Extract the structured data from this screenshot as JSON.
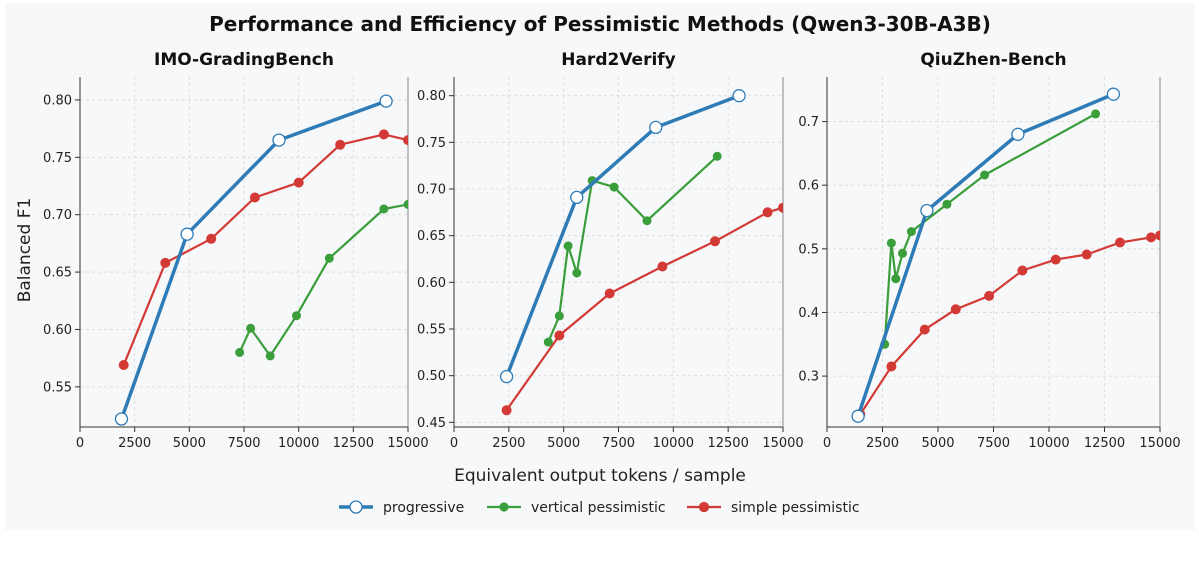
{
  "figure_title": "Performance and Efficiency of Pessimistic Methods (Qwen3-30B-A3B)",
  "xlabel": "Equivalent output tokens / sample",
  "ylabel": "Balanced F1",
  "legend": {
    "placement": "bottom-center",
    "entries": [
      "progressive",
      "vertical pessimistic",
      "simple pessimistic"
    ]
  },
  "colors": {
    "progressive": "#2f7bb6",
    "vertical pessimistic": "#3a9e3a",
    "simple pessimistic": "#d43a35"
  },
  "chart_data": [
    {
      "type": "line",
      "title": "IMO-GradingBench",
      "xlim": [
        0,
        15000
      ],
      "ylim": [
        0.515,
        0.82
      ],
      "xticks": [
        0,
        2500,
        5000,
        7500,
        10000,
        12500,
        15000
      ],
      "yticks": [
        0.55,
        0.6,
        0.65,
        0.7,
        0.75,
        0.8
      ],
      "yticklabels": [
        "0.55",
        "0.60",
        "0.65",
        "0.70",
        "0.75",
        "0.80"
      ],
      "grid": true,
      "series": [
        {
          "name": "progressive",
          "x": [
            1900,
            4900,
            9100,
            14000
          ],
          "y": [
            0.522,
            0.683,
            0.765,
            0.799
          ]
        },
        {
          "name": "vertical pessimistic",
          "x": [
            7300,
            7800,
            8700,
            9900,
            11400,
            13900,
            15000
          ],
          "y": [
            0.58,
            0.601,
            0.577,
            0.612,
            0.662,
            0.705,
            0.709
          ]
        },
        {
          "name": "simple pessimistic",
          "x": [
            2000,
            3900,
            6000,
            8000,
            10000,
            11900,
            13900,
            15000
          ],
          "y": [
            0.569,
            0.658,
            0.679,
            0.715,
            0.728,
            0.761,
            0.77,
            0.765
          ]
        }
      ]
    },
    {
      "type": "line",
      "title": "Hard2Verify",
      "xlim": [
        0,
        15000
      ],
      "ylim": [
        0.445,
        0.82
      ],
      "xticks": [
        0,
        2500,
        5000,
        7500,
        10000,
        12500,
        15000
      ],
      "yticks": [
        0.45,
        0.5,
        0.55,
        0.6,
        0.65,
        0.7,
        0.75,
        0.8
      ],
      "yticklabels": [
        "0.45",
        "0.50",
        "0.55",
        "0.60",
        "0.65",
        "0.70",
        "0.75",
        "0.80"
      ],
      "grid": true,
      "series": [
        {
          "name": "progressive",
          "x": [
            2400,
            5600,
            9200,
            13000
          ],
          "y": [
            0.499,
            0.691,
            0.766,
            0.8
          ]
        },
        {
          "name": "vertical pessimistic",
          "x": [
            4300,
            4800,
            5200,
            5600,
            6300,
            7300,
            8800,
            12000
          ],
          "y": [
            0.536,
            0.564,
            0.639,
            0.61,
            0.709,
            0.702,
            0.666,
            0.735
          ]
        },
        {
          "name": "simple pessimistic",
          "x": [
            2400,
            4800,
            7100,
            9500,
            11900,
            14300,
            15000
          ],
          "y": [
            0.463,
            0.543,
            0.588,
            0.617,
            0.644,
            0.675,
            0.68
          ]
        }
      ]
    },
    {
      "type": "line",
      "title": "QiuZhen-Bench",
      "xlim": [
        0,
        15000
      ],
      "ylim": [
        0.22,
        0.77
      ],
      "xticks": [
        0,
        2500,
        5000,
        7500,
        10000,
        12500,
        15000
      ],
      "yticks": [
        0.3,
        0.4,
        0.5,
        0.6,
        0.7
      ],
      "yticklabels": [
        "0.3",
        "0.4",
        "0.5",
        "0.6",
        "0.7"
      ],
      "grid": true,
      "series": [
        {
          "name": "progressive",
          "x": [
            1400,
            4500,
            8600,
            12900
          ],
          "y": [
            0.237,
            0.56,
            0.68,
            0.743
          ]
        },
        {
          "name": "vertical pessimistic",
          "x": [
            2600,
            2900,
            3100,
            3400,
            3800,
            5400,
            7100,
            12100
          ],
          "y": [
            0.35,
            0.509,
            0.453,
            0.493,
            0.527,
            0.57,
            0.616,
            0.712
          ]
        },
        {
          "name": "simple pessimistic",
          "x": [
            1500,
            2900,
            4400,
            5800,
            7300,
            8800,
            10300,
            11700,
            13200,
            14600,
            15000
          ],
          "y": [
            0.24,
            0.315,
            0.373,
            0.405,
            0.426,
            0.466,
            0.483,
            0.491,
            0.51,
            0.518,
            0.521
          ]
        }
      ]
    }
  ]
}
